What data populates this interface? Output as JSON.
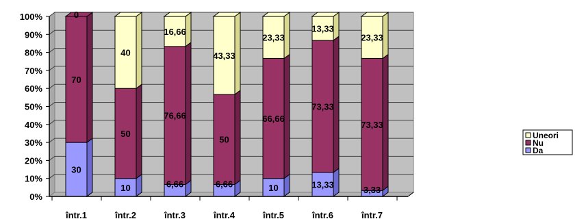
{
  "chart_data": {
    "type": "bar",
    "stacked": "percent",
    "categories": [
      "într.1",
      "într.2",
      "într.3",
      "într.4",
      "într.5",
      "într.6",
      "într.7"
    ],
    "series": [
      {
        "name": "Da",
        "values": [
          30,
          10,
          6.66,
          6.66,
          10,
          13.33,
          3.33
        ],
        "labels": [
          "30",
          "10",
          "6,66",
          "6,66",
          "10",
          "13,33",
          "3,33"
        ],
        "color": "#9999ff",
        "side": "#6a6ad0"
      },
      {
        "name": "Nu",
        "values": [
          70,
          50,
          76.66,
          50,
          66.66,
          73.33,
          73.33
        ],
        "labels": [
          "70",
          "50",
          "76,66",
          "50",
          "66,66",
          "73,33",
          "73,33"
        ],
        "color": "#993366",
        "side": "#6e2249"
      },
      {
        "name": "Uneori",
        "values": [
          0,
          40,
          16.66,
          43.33,
          23.33,
          13.33,
          23.33
        ],
        "labels": [
          "0",
          "40",
          "16,66",
          "43,33",
          "23,33",
          "13,33",
          "23,33"
        ],
        "color": "#ffffcc",
        "side": "#d8d890"
      }
    ],
    "yticks": [
      "0%",
      "10%",
      "20%",
      "30%",
      "40%",
      "50%",
      "60%",
      "70%",
      "80%",
      "90%",
      "100%"
    ],
    "ylim": [
      0,
      100
    ],
    "legend_order": [
      "Uneori",
      "Nu",
      "Da"
    ],
    "legend_position": "right",
    "grid": true,
    "wall_color": "#c0c0c0",
    "grid_color": "#404040"
  }
}
